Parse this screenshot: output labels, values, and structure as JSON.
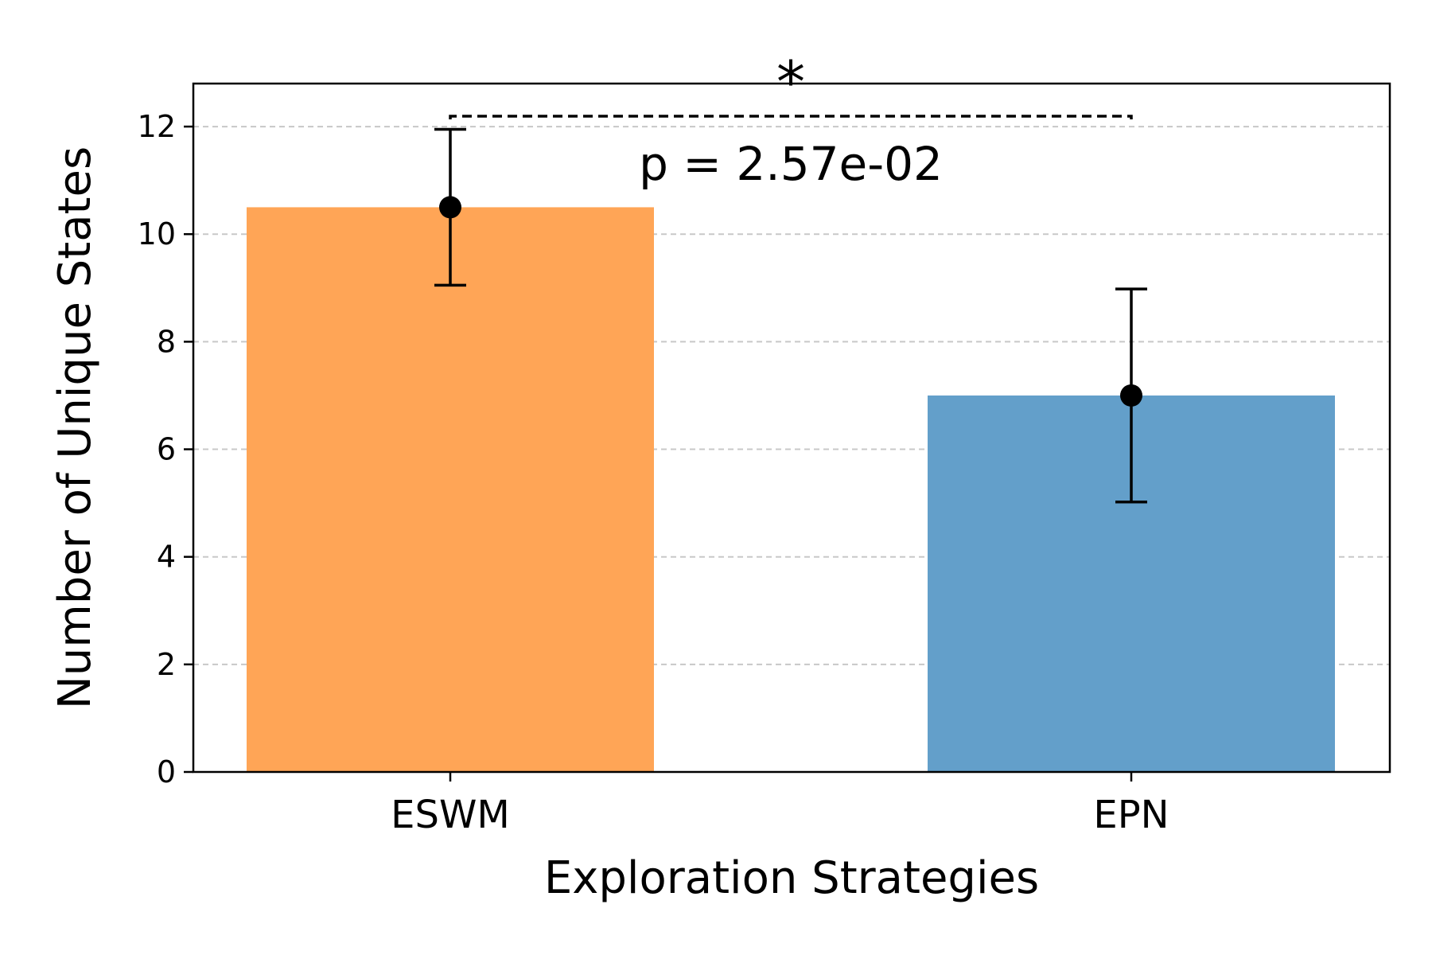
{
  "chart_data": {
    "type": "bar",
    "categories": [
      "ESWM",
      "EPN"
    ],
    "values": [
      10.5,
      7.0
    ],
    "error": [
      1.45,
      1.98
    ],
    "colors": [
      "#ffa556",
      "#639fca"
    ],
    "title": "",
    "xlabel": "Exploration Strategies",
    "ylabel": "Number of Unique States",
    "ylim": [
      0,
      12.8
    ],
    "yticks": [
      0,
      2,
      4,
      6,
      8,
      10,
      12
    ],
    "grid": "y-dashed",
    "annotation": {
      "significance": "*",
      "p_label": "p = 2.57e-02"
    }
  }
}
